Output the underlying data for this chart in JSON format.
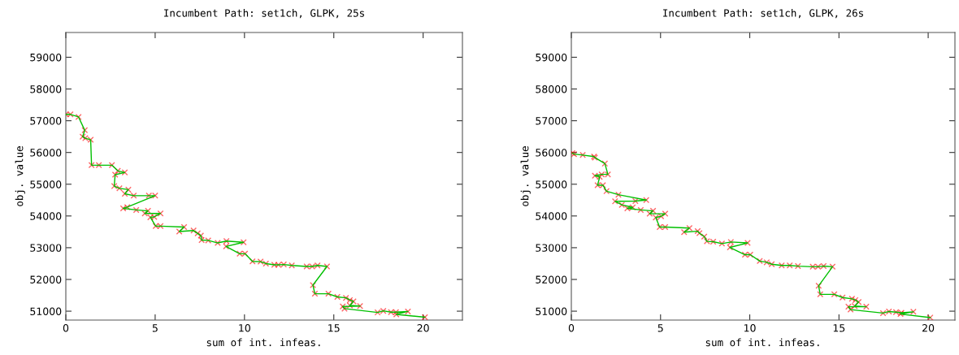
{
  "chart_data": [
    {
      "type": "line",
      "title": "Incumbent Path: set1ch, GLPK, 25s",
      "xlabel": "sum of int. infeas.",
      "ylabel": "obj. value",
      "xlim": [
        0,
        22.2
      ],
      "xticks": [
        0,
        5,
        10,
        15,
        20
      ],
      "ylim": [
        50720,
        59780
      ],
      "yticks": [
        51000,
        52000,
        53000,
        54000,
        55000,
        56000,
        57000,
        58000,
        59000
      ],
      "series": [
        {
          "color": "#00c000",
          "marker": "none",
          "x": [
            0,
            0.26,
            0.71,
            1.06,
            0.94,
            1.09,
            1.39,
            1.44,
            1.85,
            2.58,
            2.91,
            3.3,
            2.76,
            2.71,
            3.0,
            3.5,
            3.3,
            3.8,
            4.65,
            5.0,
            3.44,
            3.21,
            3.94,
            4.6,
            4.42,
            5.3,
            4.95,
            4.73,
            5.03,
            5.3,
            6.62,
            6.35,
            7.15,
            7.38,
            7.56,
            7.6,
            7.97,
            8.5,
            8.99,
            9.95,
            8.97,
            9.73,
            10.03,
            10.45,
            10.9,
            11.2,
            11.67,
            11.9,
            12.2,
            12.65,
            13.48,
            13.79,
            14.09,
            14.62,
            13.83,
            13.94,
            14.7,
            15.2,
            15.68,
            15.9,
            16.1,
            15.9,
            16.47,
            15.5,
            15.6,
            17.45,
            17.77,
            18.2,
            18.48,
            19.15,
            18.5,
            20.1
          ],
          "values": [
            57200,
            57200,
            57120,
            56700,
            56500,
            56450,
            56400,
            55600,
            55600,
            55600,
            55420,
            55370,
            55300,
            54940,
            54870,
            54830,
            54700,
            54640,
            54640,
            54640,
            54280,
            54240,
            54190,
            54160,
            54080,
            54080,
            53970,
            53960,
            53680,
            53680,
            53650,
            53510,
            53540,
            53450,
            53380,
            53240,
            53230,
            53150,
            53210,
            53170,
            53040,
            52810,
            52810,
            52570,
            52560,
            52500,
            52460,
            52460,
            52470,
            52440,
            52410,
            52410,
            52440,
            52410,
            51820,
            51550,
            51550,
            51450,
            51420,
            51350,
            51310,
            51180,
            51160,
            51150,
            51080,
            50960,
            51010,
            50970,
            50970,
            50990,
            50900,
            50810
          ]
        },
        {
          "type": "scatter",
          "color": "#ff0000",
          "marker": "cross",
          "x": [
            0,
            0.26,
            0.71,
            1.06,
            0.94,
            1.09,
            1.39,
            1.44,
            1.85,
            2.58,
            2.91,
            3.3,
            2.76,
            2.71,
            3.0,
            3.5,
            3.3,
            3.8,
            4.65,
            5.0,
            3.44,
            3.21,
            3.94,
            4.6,
            4.42,
            5.3,
            4.95,
            4.73,
            5.03,
            5.3,
            6.62,
            6.35,
            7.15,
            7.38,
            7.56,
            7.6,
            7.97,
            8.5,
            8.99,
            9.95,
            8.97,
            9.73,
            10.03,
            10.45,
            10.9,
            11.2,
            11.67,
            11.9,
            12.2,
            12.65,
            13.48,
            13.79,
            14.09,
            14.62,
            13.83,
            13.94,
            14.7,
            15.2,
            15.68,
            15.9,
            16.1,
            15.9,
            16.47,
            15.5,
            15.6,
            17.45,
            17.77,
            18.2,
            18.48,
            19.15,
            18.5,
            20.1
          ],
          "values": [
            57200,
            57200,
            57120,
            56700,
            56500,
            56450,
            56400,
            55600,
            55600,
            55600,
            55420,
            55370,
            55300,
            54940,
            54870,
            54830,
            54700,
            54640,
            54640,
            54640,
            54280,
            54240,
            54190,
            54160,
            54080,
            54080,
            53970,
            53960,
            53680,
            53680,
            53650,
            53510,
            53540,
            53450,
            53380,
            53240,
            53230,
            53150,
            53210,
            53170,
            53040,
            52810,
            52810,
            52570,
            52560,
            52500,
            52460,
            52460,
            52470,
            52440,
            52410,
            52410,
            52440,
            52410,
            51820,
            51550,
            51550,
            51450,
            51420,
            51350,
            51310,
            51180,
            51160,
            51150,
            51080,
            50960,
            51010,
            50970,
            50970,
            50990,
            50900,
            50810
          ]
        }
      ]
    },
    {
      "type": "line",
      "title": "Incumbent Path: set1ch, GLPK, 26s",
      "xlabel": "sum of int. infeas.",
      "ylabel": "obj. value",
      "xlim": [
        0,
        21.5
      ],
      "xticks": [
        0,
        5,
        10,
        15,
        20
      ],
      "ylim": [
        50720,
        59780
      ],
      "yticks": [
        51000,
        52000,
        53000,
        54000,
        55000,
        56000,
        57000,
        58000,
        59000
      ],
      "series": [
        {
          "color": "#00c000",
          "marker": "none",
          "x": [
            0.06,
            0.15,
            0.64,
            1.27,
            1.32,
            1.88,
            2.05,
            1.7,
            1.32,
            1.59,
            1.47,
            1.77,
            1.97,
            2.64,
            4.2,
            3.59,
            2.45,
            2.83,
            3.44,
            3.14,
            3.89,
            4.58,
            4.39,
            5.26,
            5.03,
            4.73,
            4.95,
            5.26,
            6.62,
            6.32,
            7.08,
            7.18,
            7.45,
            7.6,
            7.95,
            8.44,
            8.94,
            9.88,
            8.89,
            9.73,
            10.03,
            10.56,
            10.95,
            11.23,
            11.79,
            12.24,
            12.7,
            13.53,
            13.83,
            14.14,
            14.64,
            13.86,
            13.95,
            14.74,
            15.2,
            15.73,
            15.92,
            16.1,
            15.88,
            16.53,
            15.53,
            15.65,
            17.47,
            17.8,
            18.2,
            18.5,
            19.17,
            18.45,
            20.12
          ],
          "values": [
            55980,
            55950,
            55920,
            55870,
            55840,
            55650,
            55310,
            55310,
            55270,
            55230,
            54970,
            54970,
            54780,
            54670,
            54500,
            54470,
            54460,
            54350,
            54270,
            54240,
            54190,
            54160,
            54070,
            54070,
            53990,
            53950,
            53650,
            53650,
            53620,
            53490,
            53520,
            53460,
            53350,
            53200,
            53190,
            53130,
            53180,
            53150,
            53010,
            52780,
            52780,
            52580,
            52540,
            52480,
            52440,
            52440,
            52420,
            52400,
            52400,
            52420,
            52400,
            51800,
            51530,
            51530,
            51430,
            51390,
            51350,
            51290,
            51160,
            51140,
            51140,
            51050,
            50940,
            50990,
            50970,
            50950,
            50980,
            50910,
            50800
          ]
        },
        {
          "type": "scatter",
          "color": "#ff0000",
          "marker": "cross",
          "x": [
            0.06,
            0.15,
            0.64,
            1.27,
            1.32,
            1.88,
            2.05,
            1.7,
            1.32,
            1.59,
            1.47,
            1.77,
            1.97,
            2.64,
            4.2,
            3.59,
            2.45,
            2.83,
            3.44,
            3.14,
            3.89,
            4.58,
            4.39,
            5.26,
            5.03,
            4.73,
            4.95,
            5.26,
            6.62,
            6.32,
            7.08,
            7.18,
            7.45,
            7.6,
            7.95,
            8.44,
            8.94,
            9.88,
            8.89,
            9.73,
            10.03,
            10.56,
            10.95,
            11.23,
            11.79,
            12.24,
            12.7,
            13.53,
            13.83,
            14.14,
            14.64,
            13.86,
            13.95,
            14.74,
            15.2,
            15.73,
            15.92,
            16.1,
            15.88,
            16.53,
            15.53,
            15.65,
            17.47,
            17.8,
            18.2,
            18.5,
            19.17,
            18.45,
            20.12
          ],
          "values": [
            55980,
            55950,
            55920,
            55870,
            55840,
            55650,
            55310,
            55310,
            55270,
            55230,
            54970,
            54970,
            54780,
            54670,
            54500,
            54470,
            54460,
            54350,
            54270,
            54240,
            54190,
            54160,
            54070,
            54070,
            53990,
            53950,
            53650,
            53650,
            53620,
            53490,
            53520,
            53460,
            53350,
            53200,
            53190,
            53130,
            53180,
            53150,
            53010,
            52780,
            52780,
            52580,
            52540,
            52480,
            52440,
            52440,
            52420,
            52400,
            52400,
            52420,
            52400,
            51800,
            51530,
            51530,
            51430,
            51390,
            51350,
            51290,
            51160,
            51140,
            51140,
            51050,
            50940,
            50990,
            50970,
            50950,
            50980,
            50910,
            50800
          ]
        }
      ]
    }
  ]
}
